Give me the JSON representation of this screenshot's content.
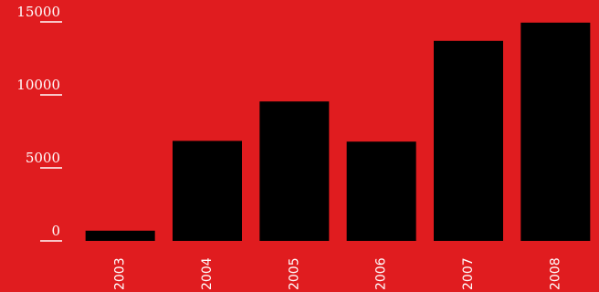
{
  "chart_data": {
    "type": "bar",
    "categories": [
      "2003",
      "2004",
      "2005",
      "2006",
      "2007",
      "2008"
    ],
    "values": [
      700,
      6850,
      9550,
      6800,
      13700,
      14950
    ],
    "yticks": [
      "0",
      "5000",
      "10000",
      "15000"
    ],
    "ylim": [
      0,
      15000
    ],
    "grid": false,
    "legend": "none",
    "colors": {
      "background": "#e01c1f",
      "bar": "#000000",
      "text": "#ffffff"
    }
  }
}
